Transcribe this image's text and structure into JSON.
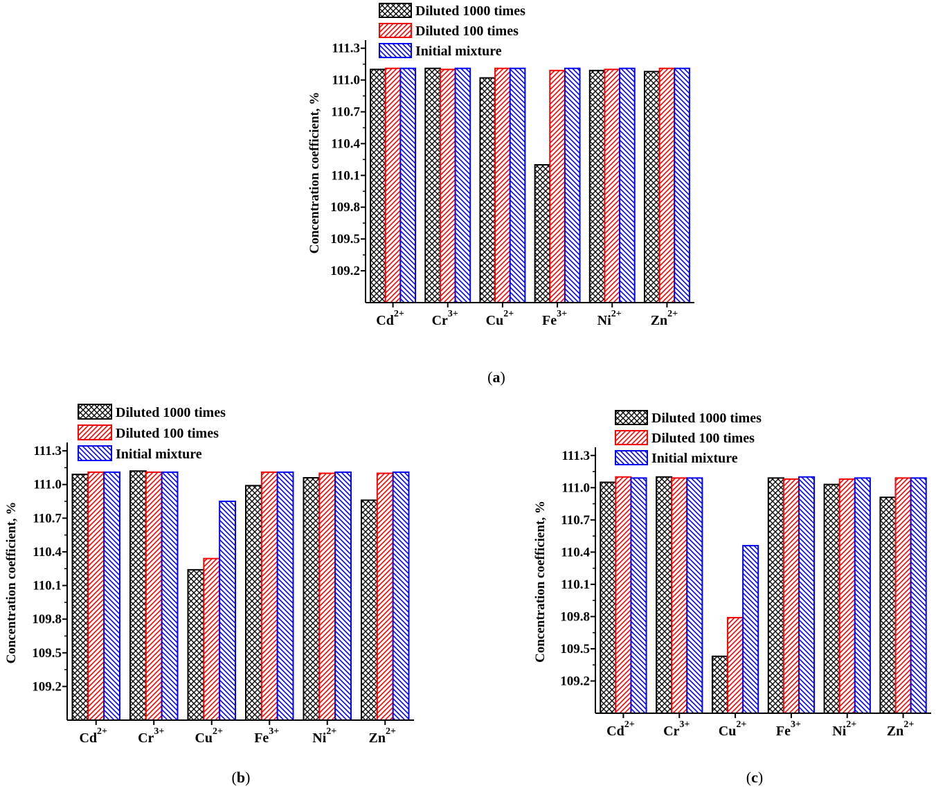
{
  "figure": {
    "series_names": [
      "Diluted 1000 times",
      "Diluted 100 times",
      "Initial mixture"
    ],
    "series_colors": [
      "#000000",
      "#ff0000",
      "#0000ff"
    ],
    "series_patterns": [
      "crosshatch",
      "forward-diagonal",
      "back-diagonal"
    ]
  },
  "chart_data": [
    {
      "panel": "a",
      "panel_label_open": "(",
      "panel_label_letter": "a",
      "panel_label_close": ")",
      "type": "bar",
      "title": "",
      "xlabel": "",
      "ylabel": "Concentration coefficient, %",
      "ylim": [
        108.9,
        111.35
      ],
      "yticks": [
        109.2,
        109.5,
        109.8,
        110.1,
        110.4,
        110.7,
        111.0,
        111.3
      ],
      "ytick_labels": [
        "109.2",
        "109.5",
        "109.8",
        "110.1",
        "110.4",
        "110.7",
        "111.0",
        "111.3"
      ],
      "categories": [
        {
          "base": "Cd",
          "sup": "2+"
        },
        {
          "base": "Cr",
          "sup": "3+"
        },
        {
          "base": "Cu",
          "sup": "2+"
        },
        {
          "base": "Fe",
          "sup": "3+"
        },
        {
          "base": "Ni",
          "sup": "2+"
        },
        {
          "base": "Zn",
          "sup": "2+"
        }
      ],
      "legend": "top-center",
      "series": [
        {
          "name": "Diluted 1000 times",
          "values": [
            111.1,
            111.11,
            111.02,
            110.2,
            111.09,
            111.08
          ]
        },
        {
          "name": "Diluted 100 times",
          "values": [
            111.11,
            111.1,
            111.11,
            111.09,
            111.1,
            111.11
          ]
        },
        {
          "name": "Initial mixture",
          "values": [
            111.11,
            111.11,
            111.11,
            111.11,
            111.11,
            111.11
          ]
        }
      ]
    },
    {
      "panel": "b",
      "panel_label_open": "(",
      "panel_label_letter": "b",
      "panel_label_close": ")",
      "type": "bar",
      "title": "",
      "xlabel": "",
      "ylabel": "Concentration coefficient, %",
      "ylim": [
        108.9,
        111.35
      ],
      "yticks": [
        109.2,
        109.5,
        109.8,
        110.1,
        110.4,
        110.7,
        111.0,
        111.3
      ],
      "ytick_labels": [
        "109.2",
        "109.5",
        "109.8",
        "110.1",
        "110.4",
        "110.7",
        "111.0",
        "111.3"
      ],
      "categories": [
        {
          "base": "Cd",
          "sup": "2+"
        },
        {
          "base": "Cr",
          "sup": "3+"
        },
        {
          "base": "Cu",
          "sup": "2+"
        },
        {
          "base": "Fe",
          "sup": "3+"
        },
        {
          "base": "Ni",
          "sup": "2+"
        },
        {
          "base": "Zn",
          "sup": "2+"
        }
      ],
      "legend": "top-left",
      "series": [
        {
          "name": "Diluted 1000 times",
          "values": [
            111.09,
            111.12,
            110.24,
            110.99,
            111.06,
            110.86
          ]
        },
        {
          "name": "Diluted 100 times",
          "values": [
            111.11,
            111.11,
            110.34,
            111.11,
            111.1,
            111.1
          ]
        },
        {
          "name": "Initial mixture",
          "values": [
            111.11,
            111.11,
            110.85,
            111.11,
            111.11,
            111.11
          ]
        }
      ]
    },
    {
      "panel": "c",
      "panel_label_open": "(",
      "panel_label_letter": "c",
      "panel_label_close": ")",
      "type": "bar",
      "title": "",
      "xlabel": "",
      "ylabel": "Concentration coefficient, %",
      "ylim": [
        108.9,
        111.35
      ],
      "yticks": [
        109.2,
        109.5,
        109.8,
        110.1,
        110.4,
        110.7,
        111.0,
        111.3
      ],
      "ytick_labels": [
        "109.2",
        "109.5",
        "109.8",
        "110.1",
        "110.4",
        "110.7",
        "111.0",
        "111.3"
      ],
      "categories": [
        {
          "base": "Cd",
          "sup": "2+"
        },
        {
          "base": "Cr",
          "sup": "3+"
        },
        {
          "base": "Cu",
          "sup": "2+"
        },
        {
          "base": "Fe",
          "sup": "3+"
        },
        {
          "base": "Ni",
          "sup": "2+"
        },
        {
          "base": "Zn",
          "sup": "2+"
        }
      ],
      "legend": "top-left",
      "series": [
        {
          "name": "Diluted 1000 times",
          "values": [
            111.05,
            111.1,
            109.43,
            111.09,
            111.03,
            110.91
          ]
        },
        {
          "name": "Diluted 100 times",
          "values": [
            111.1,
            111.09,
            109.79,
            111.08,
            111.08,
            111.09
          ]
        },
        {
          "name": "Initial mixture",
          "values": [
            111.09,
            111.09,
            110.46,
            111.1,
            111.09,
            111.09
          ]
        }
      ]
    }
  ]
}
